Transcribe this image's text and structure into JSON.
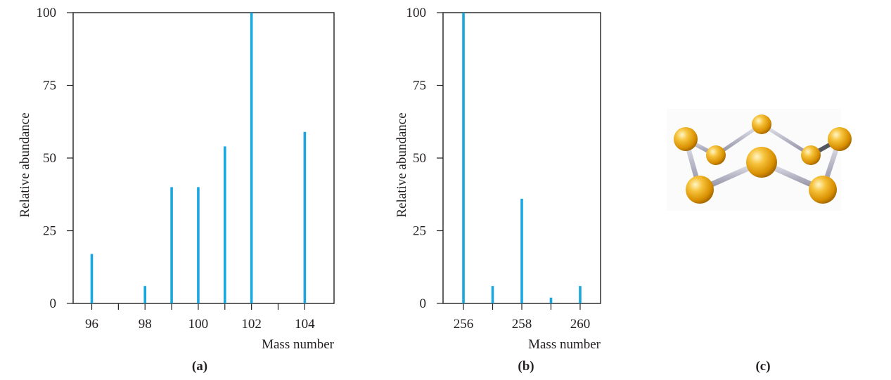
{
  "colors": {
    "bar": "#1aa7df",
    "axis": "#231f20",
    "atom": "#f2b618",
    "bond": "#c8c8d4"
  },
  "chart_data": [
    {
      "type": "bar",
      "panel_label": "(a)",
      "xlabel": "Mass number",
      "ylabel": "Relative abundance",
      "xlim": [
        95.3,
        105.1
      ],
      "ylim": [
        0,
        100
      ],
      "x_ticks": [
        96,
        97,
        98,
        99,
        100,
        101,
        102,
        103,
        104
      ],
      "x_tick_labels": [
        "96",
        "98",
        "100",
        "102",
        "104"
      ],
      "x_tick_label_values": [
        96,
        98,
        100,
        102,
        104
      ],
      "y_ticks": [
        0,
        25,
        50,
        75,
        100
      ],
      "x": [
        96,
        98,
        99,
        100,
        101,
        102,
        104
      ],
      "values": [
        17,
        6,
        40,
        40,
        54,
        100,
        59
      ],
      "grid": false
    },
    {
      "type": "bar",
      "panel_label": "(b)",
      "xlabel": "Mass number",
      "ylabel": "Relative abundance",
      "xlim": [
        255.3,
        260.7
      ],
      "ylim": [
        0,
        100
      ],
      "x_ticks": [
        256,
        257,
        258,
        259,
        260
      ],
      "x_tick_labels": [
        "256",
        "258",
        "260"
      ],
      "x_tick_label_values": [
        256,
        258,
        260
      ],
      "y_ticks": [
        0,
        25,
        50,
        75,
        100
      ],
      "x": [
        256,
        257,
        258,
        259,
        260
      ],
      "values": [
        100,
        6,
        36,
        2,
        6
      ],
      "grid": false
    }
  ],
  "molecule": {
    "panel_label": "(c)",
    "description_icon": "s8-ring-model",
    "atom_count": 8
  }
}
